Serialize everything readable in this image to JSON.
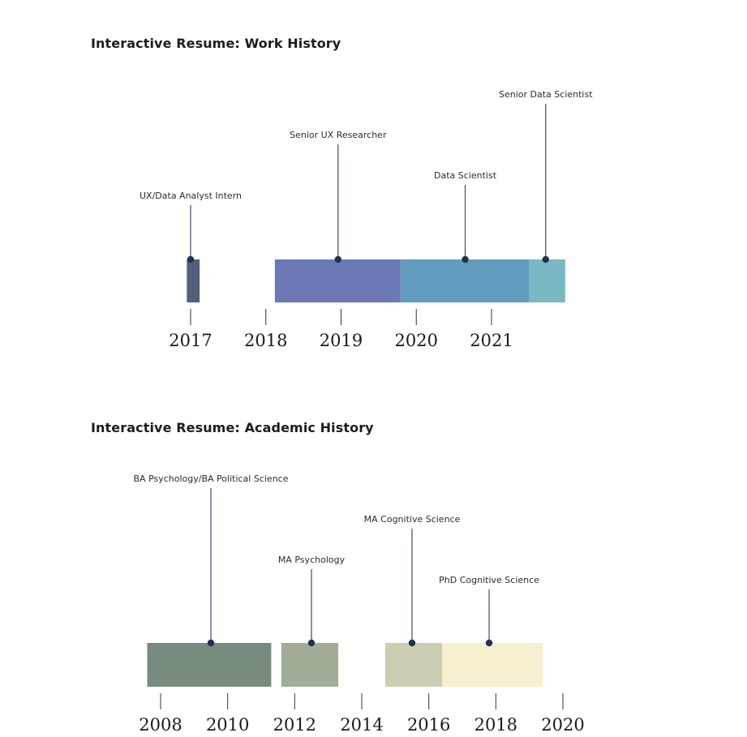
{
  "work": {
    "title": "Interactive Resume: Work History"
  },
  "academic": {
    "title": "Interactive Resume: Academic History"
  },
  "colors": {
    "stem": "#3c4e6e",
    "dot": "#22314f",
    "tick": "#333333"
  },
  "chart_data": [
    {
      "type": "timeline",
      "title": "Interactive Resume: Work History",
      "axis": {
        "unit": "year",
        "ticks": [
          2017,
          2018,
          2019,
          2020,
          2021
        ]
      },
      "items": [
        {
          "label": "UX/Data Analyst Intern",
          "start": 2016.95,
          "end": 2017.12,
          "marker": 2017.0,
          "level": 0,
          "color": "#525e7a"
        },
        {
          "label": "Senior UX Researcher",
          "start": 2018.12,
          "end": 2019.79,
          "marker": 2018.96,
          "level": 2,
          "color": "#6b78b5"
        },
        {
          "label": "Data Scientist",
          "start": 2019.79,
          "end": 2021.5,
          "marker": 2020.65,
          "level": 1,
          "color": "#629cbd"
        },
        {
          "label": "Senior Data Scientist",
          "start": 2021.5,
          "end": 2021.98,
          "marker": 2021.72,
          "level": 3,
          "color": "#7ab8c3"
        }
      ]
    },
    {
      "type": "timeline",
      "title": "Interactive Resume: Academic History",
      "axis": {
        "unit": "year",
        "ticks": [
          2008,
          2010,
          2012,
          2014,
          2016,
          2018,
          2020
        ]
      },
      "items": [
        {
          "label": "BA Psychology/BA Political Science",
          "start": 2007.6,
          "end": 2011.3,
          "marker": 2009.5,
          "level": 3,
          "color": "#798b7c"
        },
        {
          "label": "MA Psychology",
          "start": 2011.6,
          "end": 2013.3,
          "marker": 2012.5,
          "level": 1,
          "color": "#a2ad99"
        },
        {
          "label": "MA Cognitive Science",
          "start": 2014.7,
          "end": 2016.4,
          "marker": 2015.5,
          "level": 2,
          "color": "#cccdb3"
        },
        {
          "label": "PhD Cognitive Science",
          "start": 2016.4,
          "end": 2019.4,
          "marker": 2017.8,
          "level": 0,
          "color": "#f6f0d1"
        }
      ]
    }
  ]
}
